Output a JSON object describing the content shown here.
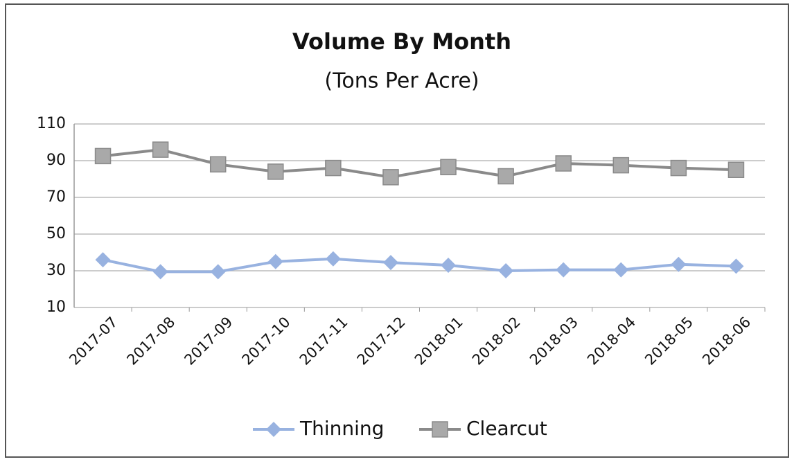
{
  "chart_data": {
    "type": "line",
    "title": "Volume By Month",
    "subtitle": "(Tons Per Acre)",
    "categories": [
      "2017-07",
      "2017-08",
      "2017-09",
      "2017-10",
      "2017-11",
      "2017-12",
      "2018-01",
      "2018-02",
      "2018-03",
      "2018-04",
      "2018-05",
      "2018-06"
    ],
    "series": [
      {
        "name": "Thinning",
        "color": "#98b2e0",
        "marker": "diamond",
        "values": [
          36,
          29.5,
          29.5,
          35,
          36.5,
          34.5,
          33,
          30,
          30.5,
          30.5,
          33.5,
          32.5
        ]
      },
      {
        "name": "Clearcut",
        "color": "#8a8a8a",
        "marker": "square",
        "values": [
          92.5,
          96,
          88,
          84,
          86,
          81,
          86.5,
          81.5,
          88.5,
          87.5,
          86,
          85
        ]
      }
    ],
    "ylim": [
      10,
      110
    ],
    "yticks": [
      10,
      30,
      50,
      70,
      90,
      110
    ],
    "grid": true,
    "legend": "bottom"
  }
}
